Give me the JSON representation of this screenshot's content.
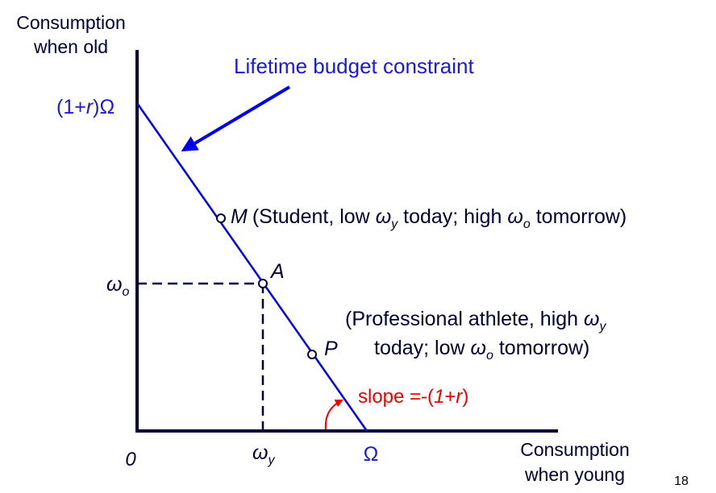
{
  "colors": {
    "axis": "#000033",
    "line": "#0000ee",
    "accent": "#ee0000",
    "text": "#000033",
    "label_blue": "#1a1adc"
  },
  "axes": {
    "y_label_line1": "Consumption",
    "y_label_line2": "when old",
    "x_label_line1": "Consumption",
    "x_label_line2": "when young",
    "origin": "0"
  },
  "labels": {
    "title": "Lifetime budget constraint",
    "y_intercept": {
      "pre": "(1+",
      "var": "r",
      "post": ")Ω"
    },
    "x_intercept": "Ω",
    "omega": "ω",
    "sub_o": "o",
    "sub_y": "y"
  },
  "points": {
    "M": {
      "name": "M",
      "text_a": "(Student, low ",
      "text_b": " today; high ",
      "text_c": " tomorrow)"
    },
    "A": {
      "name": "A"
    },
    "P": {
      "name": "P",
      "line1_a": "(Professional athlete, high ",
      "line2_a": "today; low ",
      "line2_b": " tomorrow)"
    }
  },
  "slope": {
    "pre": "slope =-(",
    "one": "1",
    "plus": "+",
    "var": "r",
    "post": ")"
  },
  "page_number": "18"
}
